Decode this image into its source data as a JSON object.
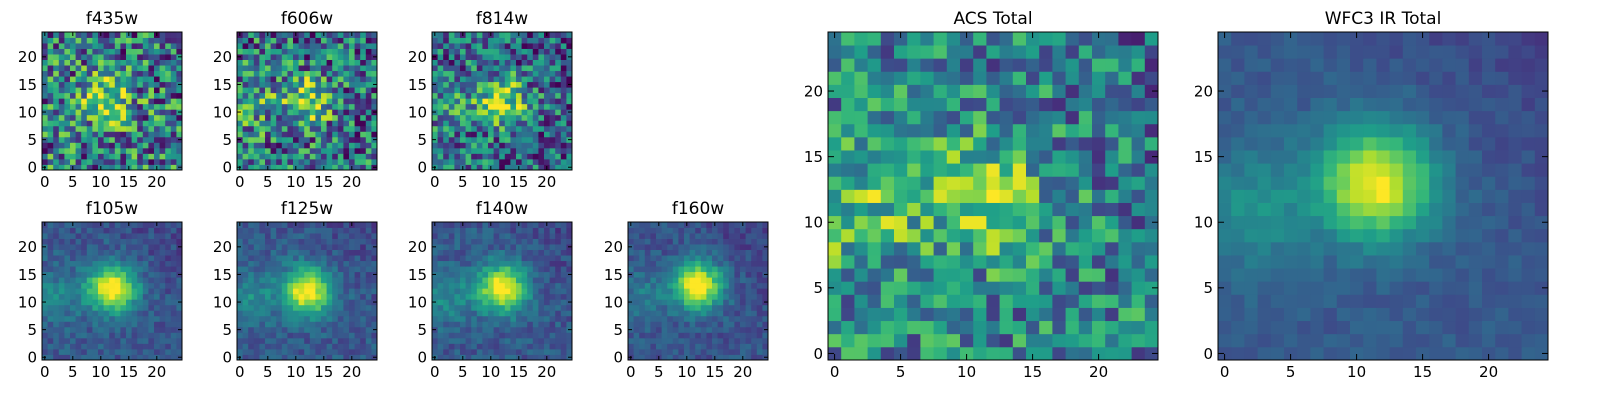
{
  "figure": {
    "colormap": "viridis",
    "colormap_stops": [
      "#440154",
      "#482878",
      "#3e4989",
      "#31688e",
      "#26828e",
      "#1f9e89",
      "#35b779",
      "#6ece58",
      "#b5de2b",
      "#fde725"
    ]
  },
  "chart_data": [
    {
      "type": "heatmap",
      "title": "f435w",
      "grid": "25x25",
      "xlim": [
        0,
        24
      ],
      "ylim": [
        0,
        24
      ],
      "xticks": [
        "0",
        "5",
        "10",
        "15",
        "20"
      ],
      "yticks": [
        "0",
        "5",
        "10",
        "15",
        "20"
      ],
      "center": [
        11,
        12
      ],
      "peak_level": 0.5,
      "noise_level": 0.42,
      "background_level": 0.42,
      "left_glow_level": 0.0
    },
    {
      "type": "heatmap",
      "title": "f606w",
      "grid": "25x25",
      "xlim": [
        0,
        24
      ],
      "ylim": [
        0,
        24
      ],
      "xticks": [
        "0",
        "5",
        "10",
        "15",
        "20"
      ],
      "yticks": [
        "0",
        "5",
        "10",
        "15",
        "20"
      ],
      "center": [
        12,
        12
      ],
      "peak_level": 0.5,
      "noise_level": 0.4,
      "background_level": 0.38,
      "left_glow_level": 0.22
    },
    {
      "type": "heatmap",
      "title": "f814w",
      "grid": "25x25",
      "xlim": [
        0,
        24
      ],
      "ylim": [
        0,
        24
      ],
      "xticks": [
        "0",
        "5",
        "10",
        "15",
        "20"
      ],
      "yticks": [
        "0",
        "5",
        "10",
        "15",
        "20"
      ],
      "center": [
        12,
        12
      ],
      "peak_level": 0.55,
      "noise_level": 0.36,
      "background_level": 0.35,
      "left_glow_level": 0.2
    },
    {
      "type": "heatmap",
      "title": "f105w",
      "grid": "25x25",
      "xlim": [
        0,
        24
      ],
      "ylim": [
        0,
        24
      ],
      "xticks": [
        "0",
        "5",
        "10",
        "15",
        "20"
      ],
      "yticks": [
        "0",
        "5",
        "10",
        "15",
        "20"
      ],
      "center": [
        12,
        12.5
      ],
      "peak_level": 0.75,
      "noise_level": 0.1,
      "background_level": 0.28,
      "left_glow_level": 0.18
    },
    {
      "type": "heatmap",
      "title": "f125w",
      "grid": "25x25",
      "xlim": [
        0,
        24
      ],
      "ylim": [
        0,
        24
      ],
      "xticks": [
        "0",
        "5",
        "10",
        "15",
        "20"
      ],
      "yticks": [
        "0",
        "5",
        "10",
        "15",
        "20"
      ],
      "center": [
        12,
        12
      ],
      "peak_level": 0.75,
      "noise_level": 0.1,
      "background_level": 0.28,
      "left_glow_level": 0.2
    },
    {
      "type": "heatmap",
      "title": "f140w",
      "grid": "25x25",
      "xlim": [
        0,
        24
      ],
      "ylim": [
        0,
        24
      ],
      "xticks": [
        "0",
        "5",
        "10",
        "15",
        "20"
      ],
      "yticks": [
        "0",
        "5",
        "10",
        "15",
        "20"
      ],
      "center": [
        12,
        12.5
      ],
      "peak_level": 0.75,
      "noise_level": 0.1,
      "background_level": 0.28,
      "left_glow_level": 0.2
    },
    {
      "type": "heatmap",
      "title": "f160w",
      "grid": "25x25",
      "xlim": [
        0,
        24
      ],
      "ylim": [
        0,
        24
      ],
      "xticks": [
        "0",
        "5",
        "10",
        "15",
        "20"
      ],
      "yticks": [
        "0",
        "5",
        "10",
        "15",
        "20"
      ],
      "center": [
        12,
        13
      ],
      "peak_level": 0.78,
      "noise_level": 0.09,
      "background_level": 0.26,
      "left_glow_level": 0.16
    },
    {
      "type": "heatmap",
      "title": "ACS Total",
      "grid": "25x25",
      "xlim": [
        0,
        24
      ],
      "ylim": [
        0,
        24
      ],
      "xticks": [
        "0",
        "5",
        "10",
        "15",
        "20"
      ],
      "yticks": [
        "0",
        "5",
        "10",
        "15",
        "20"
      ],
      "center": [
        11.5,
        12
      ],
      "peak_level": 0.42,
      "noise_level": 0.3,
      "background_level": 0.45,
      "left_glow_level": 0.28
    },
    {
      "type": "heatmap",
      "title": "WFC3 IR Total",
      "grid": "25x25",
      "xlim": [
        0,
        24
      ],
      "ylim": [
        0,
        24
      ],
      "xticks": [
        "0",
        "5",
        "10",
        "15",
        "20"
      ],
      "yticks": [
        "0",
        "5",
        "10",
        "15",
        "20"
      ],
      "center": [
        11.5,
        13
      ],
      "peak_level": 0.72,
      "noise_level": 0.05,
      "background_level": 0.28,
      "left_glow_level": 0.22
    }
  ]
}
